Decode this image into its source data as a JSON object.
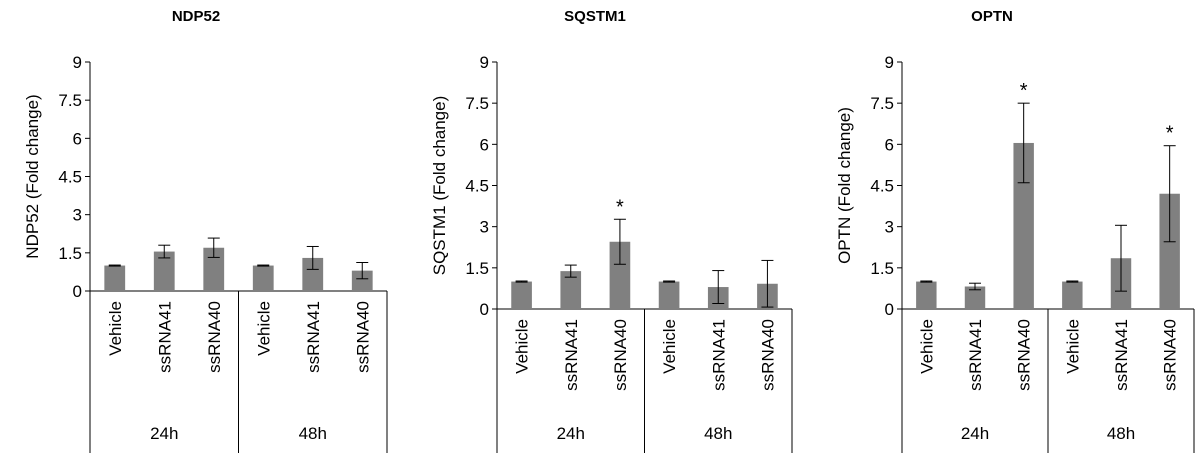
{
  "figure": {
    "bar_color": "#808080",
    "axis_color": "#000000"
  },
  "chart_data": [
    {
      "type": "bar",
      "title": "NDP52",
      "ylabel": "NDP52 (Fold change)",
      "ylim": [
        0,
        9
      ],
      "yticks": [
        "0",
        "1.5",
        "3",
        "4.5",
        "6",
        "7.5",
        "9"
      ],
      "categories": [
        "Vehicle",
        "ssRNA41",
        "ssRNA40",
        "Vehicle",
        "ssRNA41",
        "ssRNA40"
      ],
      "groups": [
        {
          "label": "24h",
          "span": [
            0,
            2
          ]
        },
        {
          "label": "48h",
          "span": [
            3,
            5
          ]
        }
      ],
      "values": [
        1.0,
        1.55,
        1.7,
        1.0,
        1.3,
        0.8
      ],
      "errors": [
        0.02,
        0.25,
        0.38,
        0.02,
        0.45,
        0.32
      ],
      "significance": [
        "",
        "",
        "",
        "",
        "",
        ""
      ]
    },
    {
      "type": "bar",
      "title": "SQSTM1",
      "ylabel": "SQSTM1 (Fold change)",
      "ylim": [
        0,
        9
      ],
      "yticks": [
        "0",
        "1.5",
        "3",
        "4.5",
        "6",
        "7.5",
        "9"
      ],
      "categories": [
        "Vehicle",
        "ssRNA41",
        "ssRNA40",
        "Vehicle",
        "ssRNA41",
        "ssRNA40"
      ],
      "groups": [
        {
          "label": "24h",
          "span": [
            0,
            2
          ]
        },
        {
          "label": "48h",
          "span": [
            3,
            5
          ]
        }
      ],
      "values": [
        1.0,
        1.38,
        2.45,
        1.0,
        0.8,
        0.92
      ],
      "errors": [
        0.02,
        0.22,
        0.82,
        0.02,
        0.6,
        0.85
      ],
      "significance": [
        "",
        "",
        "*",
        "",
        "",
        ""
      ]
    },
    {
      "type": "bar",
      "title": "OPTN",
      "ylabel": "OPTN (Fold change)",
      "ylim": [
        0,
        9
      ],
      "yticks": [
        "0",
        "1.5",
        "3",
        "4.5",
        "6",
        "7.5",
        "9"
      ],
      "categories": [
        "Vehicle",
        "ssRNA41",
        "ssRNA40",
        "Vehicle",
        "ssRNA41",
        "ssRNA40"
      ],
      "groups": [
        {
          "label": "24h",
          "span": [
            0,
            2
          ]
        },
        {
          "label": "48h",
          "span": [
            3,
            5
          ]
        }
      ],
      "values": [
        1.0,
        0.82,
        6.05,
        1.0,
        1.85,
        4.2
      ],
      "errors": [
        0.02,
        0.12,
        1.45,
        0.02,
        1.2,
        1.75
      ],
      "significance": [
        "",
        "",
        "*",
        "",
        "",
        "*"
      ]
    }
  ]
}
